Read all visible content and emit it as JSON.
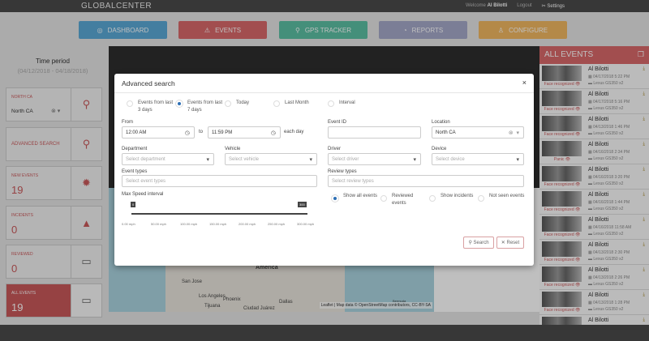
{
  "header": {
    "logo": "GLOBALCENTER",
    "welcome": "Welcome",
    "user": "Al Bilotti",
    "logout": "Logout",
    "settings": "Settings"
  },
  "nav": [
    {
      "label": "DASHBOARD",
      "icon": "dashboard-icon",
      "color": "#5aa9d6"
    },
    {
      "label": "EVENTS",
      "icon": "warning-icon",
      "color": "#d9686a"
    },
    {
      "label": "GPS TRACKER",
      "icon": "map-pin-icon",
      "color": "#5bbfa3"
    },
    {
      "label": "REPORTS",
      "icon": "chart-pie-icon",
      "color": "#a5a8c9"
    },
    {
      "label": "CONFIGURE",
      "icon": "user-icon",
      "color": "#f1b760"
    }
  ],
  "sidebar": {
    "time_period_label": "Time period",
    "time_period": "(04/12/2018 - 04/18/2018)",
    "location": {
      "label": "NORTH CA",
      "value": "North CA"
    },
    "advanced_search": "ADVANCED SEARCH",
    "new_events": {
      "label": "NEW EVENTS",
      "value": "19"
    },
    "incidents": {
      "label": "INCIDENTS",
      "value": "0"
    },
    "reviewed": {
      "label": "REVIEWED",
      "value": "0"
    },
    "all_events": {
      "label": "ALL EVENTS",
      "value": "19"
    }
  },
  "map": {
    "labels": [
      "America",
      "San Jose",
      "Los Angeles",
      "Phoenix",
      "Tijuana",
      "Ciudad Juárez",
      "Dallas",
      "Bermuda"
    ],
    "attribution": "Leaflet | Map data © OpenStreetMap contributors, CC-BY-SA"
  },
  "events": {
    "title": "ALL EVENTS",
    "items": [
      {
        "name": "Al Bilotti",
        "date": "04/17/2018 5:22 PM",
        "vehicle": "Lexus GS350 x2",
        "tag": "Face recognized"
      },
      {
        "name": "Al Bilotti",
        "date": "04/17/2018 5:16 PM",
        "vehicle": "Lexus GS350 x2",
        "tag": "Face recognized"
      },
      {
        "name": "Al Bilotti",
        "date": "04/13/2018 1:46 PM",
        "vehicle": "Lexus GS350 x2",
        "tag": "Face recognized"
      },
      {
        "name": "Al Bilotti",
        "date": "04/16/2018 2:34 PM",
        "vehicle": "Lexus GS350 x2",
        "tag": "Panic"
      },
      {
        "name": "Al Bilotti",
        "date": "04/16/2018 3:20 PM",
        "vehicle": "Lexus GS350 x2",
        "tag": "Face recognized"
      },
      {
        "name": "Al Bilotti",
        "date": "04/16/2018 1:44 PM",
        "vehicle": "Lexus GS350 x2",
        "tag": "Face recognized"
      },
      {
        "name": "Al Bilotti",
        "date": "04/16/2018 11:58 AM",
        "vehicle": "Lexus GS350 x2",
        "tag": "Face recognized"
      },
      {
        "name": "Al Bilotti",
        "date": "04/13/2018 2:30 PM",
        "vehicle": "Lexus GS350 x2",
        "tag": "Face recognized"
      },
      {
        "name": "Al Bilotti",
        "date": "04/13/2018 2:26 PM",
        "vehicle": "Lexus GS350 x2",
        "tag": "Face recognized"
      },
      {
        "name": "Al Bilotti",
        "date": "04/13/2018 1:28 PM",
        "vehicle": "Lexus GS350 x2",
        "tag": "Face recognized"
      },
      {
        "name": "Al Bilotti",
        "date": "",
        "vehicle": "",
        "tag": ""
      }
    ]
  },
  "modal": {
    "title": "Advanced search",
    "periods": [
      {
        "label": "Events from last 3 days",
        "selected": false
      },
      {
        "label": "Events from last 7 days",
        "selected": true
      },
      {
        "label": "Today",
        "selected": false
      },
      {
        "label": "Last Month",
        "selected": false
      },
      {
        "label": "Interval",
        "selected": false
      }
    ],
    "from_label": "From",
    "from_value": "12:00 AM",
    "to_label": "to",
    "to_value": "11:59 PM",
    "each_day": "each day",
    "event_id_label": "Event ID",
    "event_id_value": "",
    "location_label": "Location",
    "location_value": "North CA",
    "department_label": "Department",
    "department_placeholder": "Select department",
    "vehicle_label": "Vehicle",
    "vehicle_placeholder": "Select vehicle",
    "driver_label": "Driver",
    "driver_placeholder": "Select driver",
    "device_label": "Device",
    "device_placeholder": "Select device",
    "event_types_label": "Event types",
    "event_types_placeholder": "Select event types",
    "review_types_label": "Review types",
    "review_types_placeholder": "Select review types",
    "speed_label": "Max Speed interval",
    "speed_min": "0",
    "speed_max": "300",
    "speed_ticks": [
      "0.00 mph",
      "50.00 mph",
      "100.00 mph",
      "150.00 mph",
      "200.00 mph",
      "250.00 mph",
      "300.00 mph"
    ],
    "review_options": [
      {
        "label": "Show all events",
        "selected": true
      },
      {
        "label": "Reviewed events",
        "selected": false
      },
      {
        "label": "Show incidents",
        "selected": false
      },
      {
        "label": "Not seen events",
        "selected": false
      }
    ],
    "search_label": "Search",
    "reset_label": "Reset"
  }
}
